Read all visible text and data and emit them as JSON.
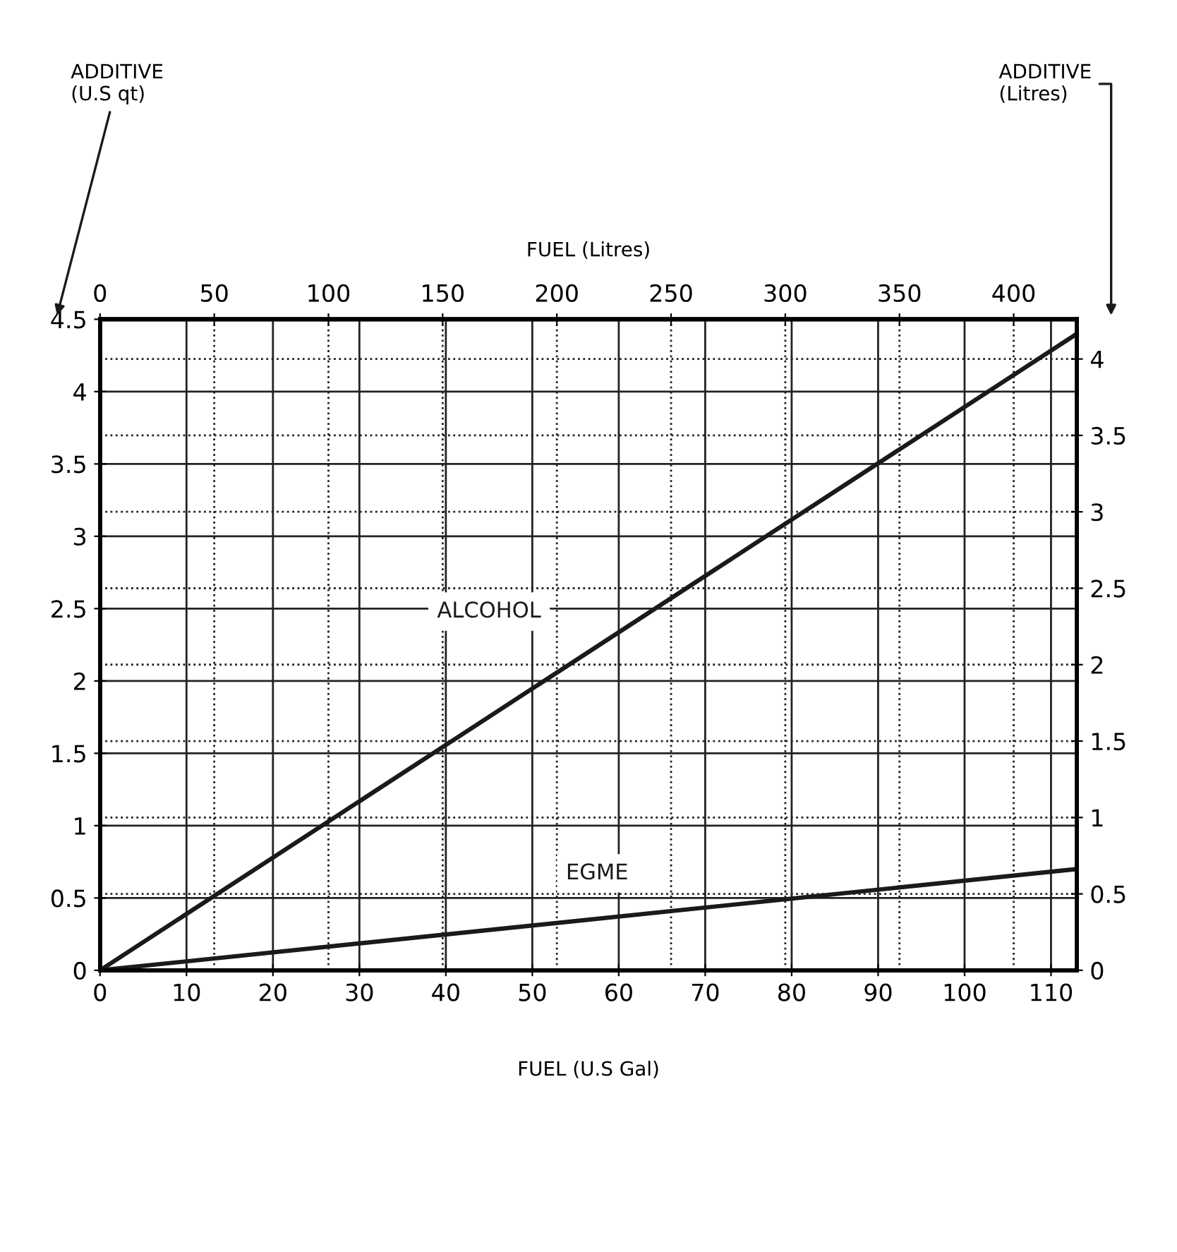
{
  "chart_data": {
    "type": "line",
    "xlabel": "FUEL (U.S Gal)",
    "x2label": "FUEL (Litres)",
    "annotations": [
      "ADDITIVE\n(U.S qt)",
      "ADDITIVE\n(Litres)"
    ],
    "x": [
      0,
      113
    ],
    "series": [
      {
        "name": "ALCOHOL",
        "color": "#1a1a1a",
        "values": [
          0,
          4.4
        ]
      },
      {
        "name": "EGME",
        "color": "#1a1a1a",
        "values": [
          0,
          0.7
        ]
      }
    ],
    "xlim": [
      0,
      113
    ],
    "xticks": [
      0,
      10,
      20,
      30,
      40,
      50,
      60,
      70,
      80,
      90,
      100,
      110
    ],
    "ylim": [
      0,
      4.5
    ],
    "yticks": [
      0,
      0.5,
      1,
      1.5,
      2,
      2.5,
      3,
      3.5,
      4,
      4.5
    ],
    "x2lim": [
      0,
      427.7
    ],
    "x2ticks": [
      0,
      50,
      100,
      150,
      200,
      250,
      300,
      350,
      400
    ],
    "y2lim": [
      0,
      4.26
    ],
    "y2ticks": [
      0,
      0.5,
      1,
      1.5,
      2,
      2.5,
      3,
      3.5,
      4
    ],
    "grid": true,
    "marker": "none",
    "line_style": "solid"
  }
}
